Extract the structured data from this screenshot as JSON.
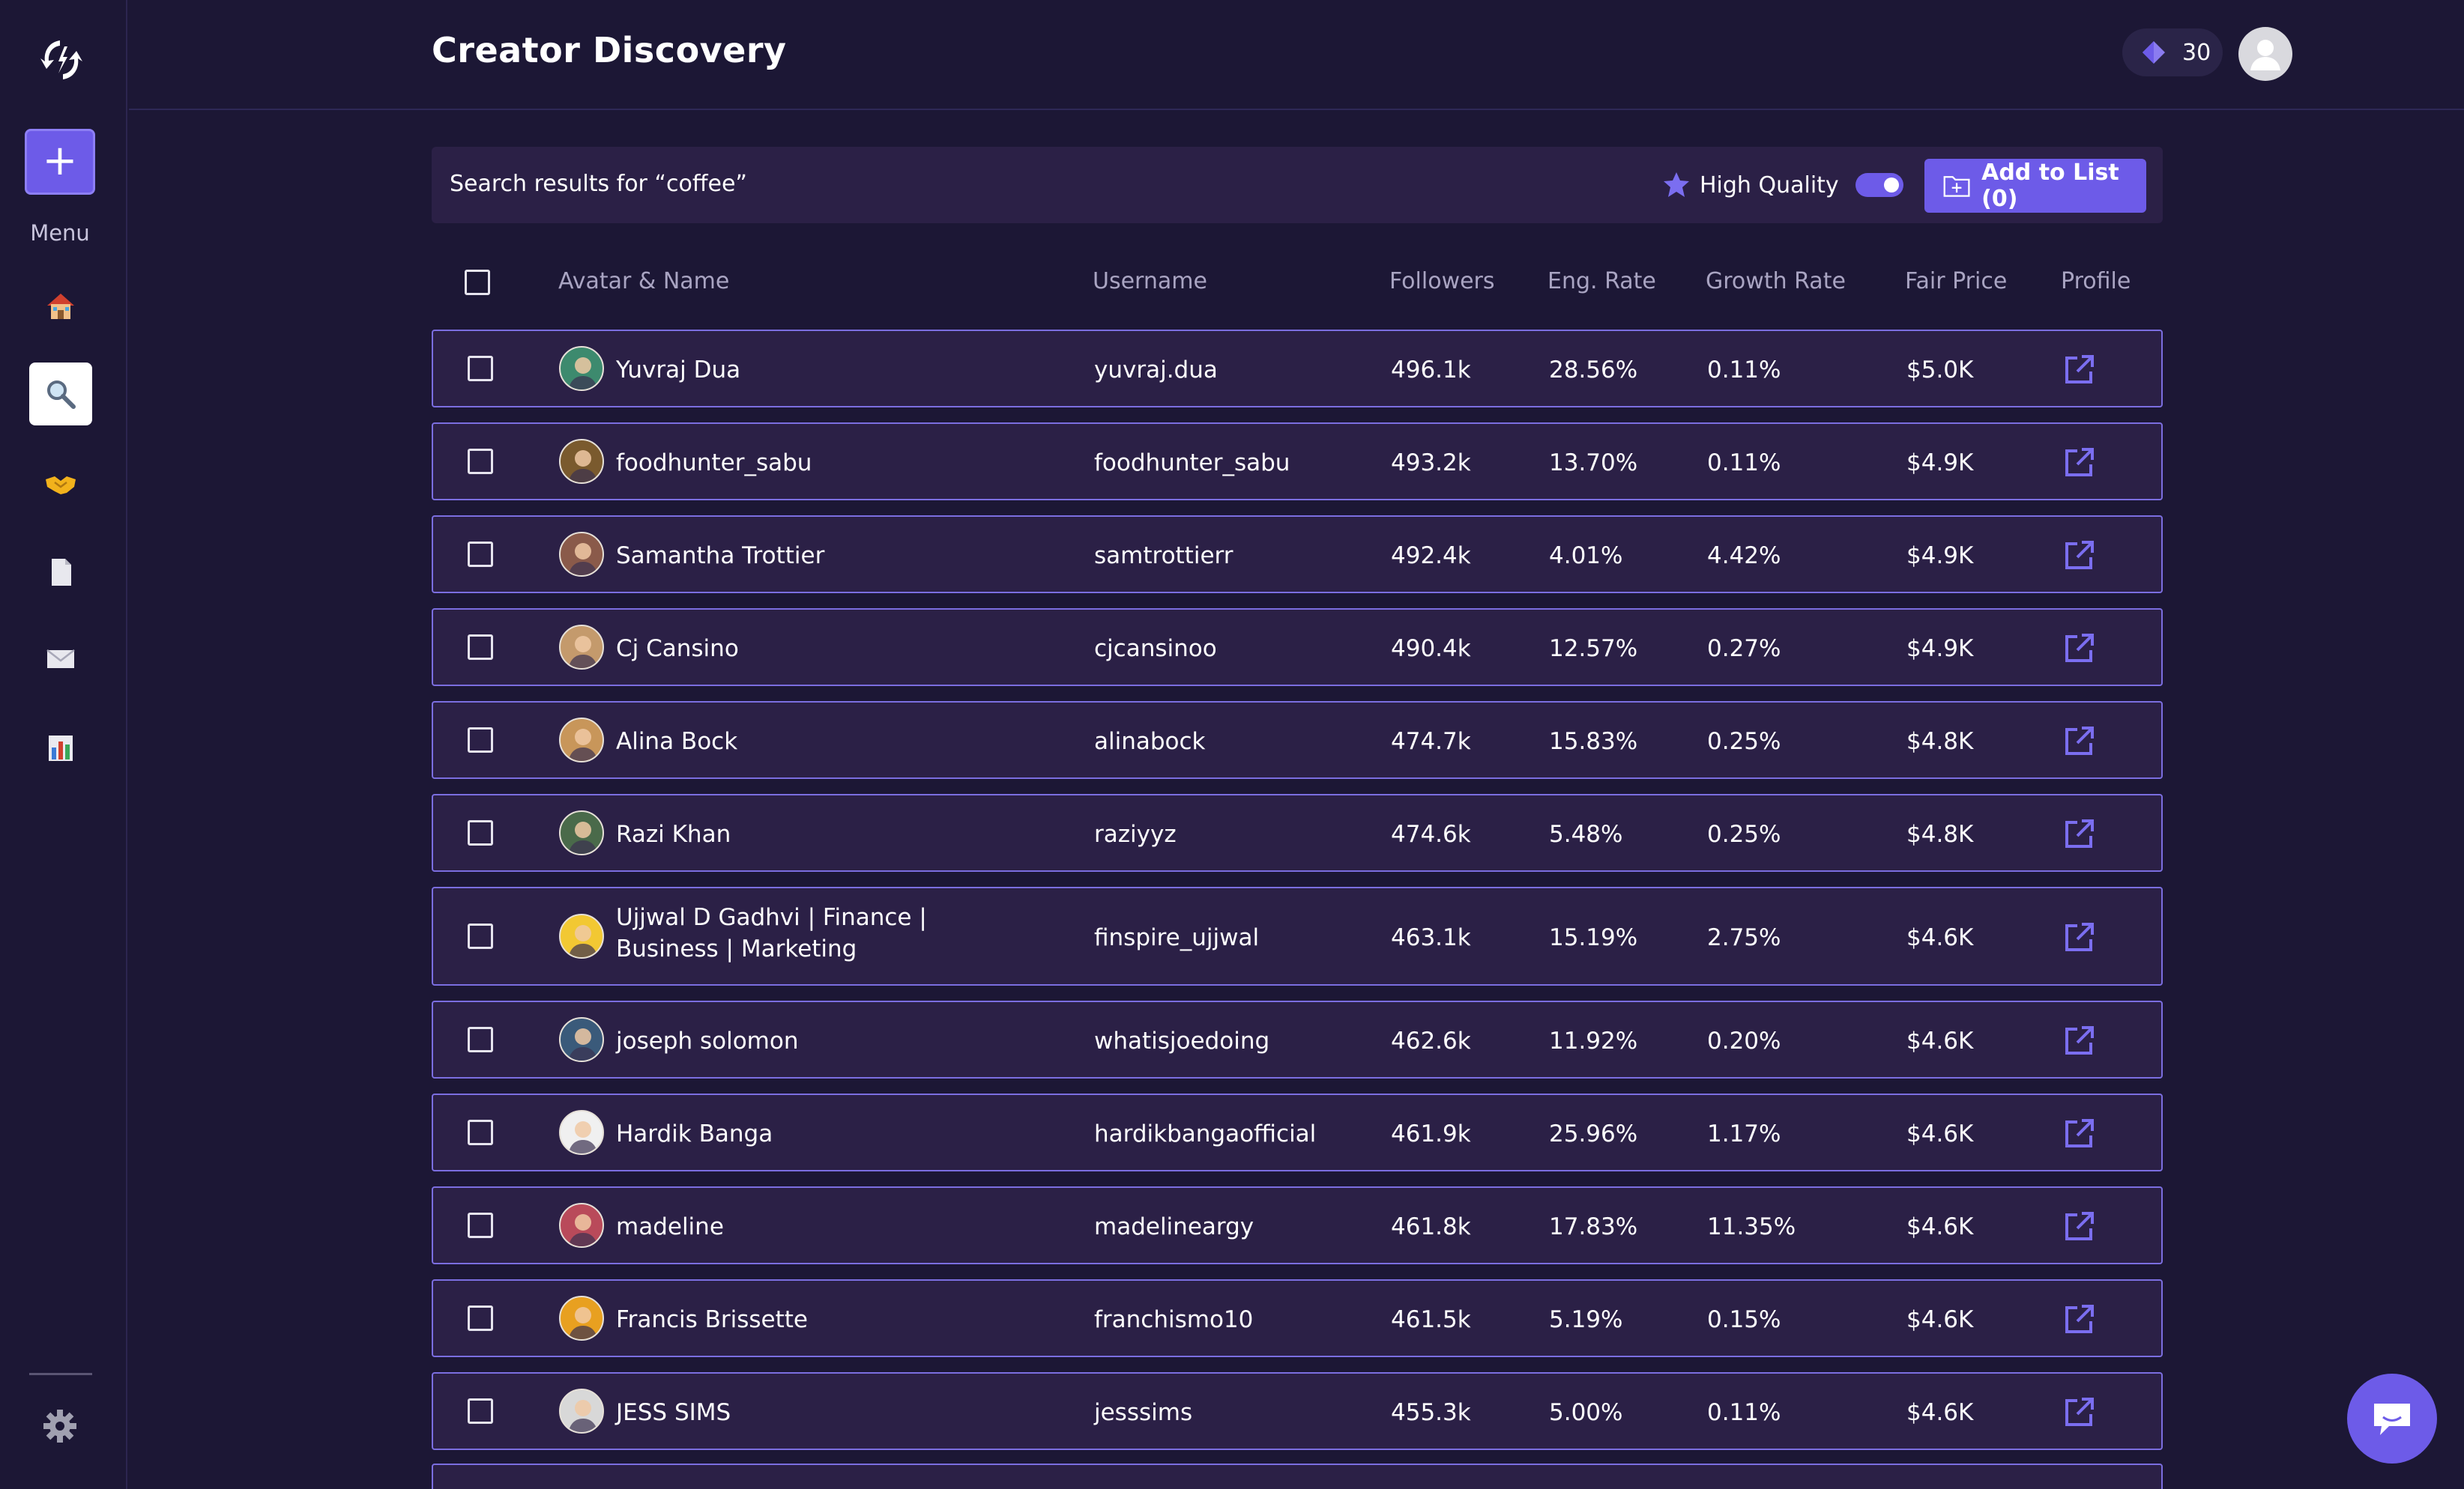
{
  "sidebar": {
    "new_label": "+",
    "menu_label": "Menu",
    "items": [
      {
        "icon": "home-icon",
        "active": false
      },
      {
        "icon": "search-icon",
        "active": true
      },
      {
        "icon": "handshake-icon",
        "active": false
      },
      {
        "icon": "document-icon",
        "active": false
      },
      {
        "icon": "mail-icon",
        "active": false
      },
      {
        "icon": "bar-chart-icon",
        "active": false
      }
    ],
    "settings_icon": "gear-icon"
  },
  "header": {
    "title": "Creator Discovery",
    "credits": "30"
  },
  "search": {
    "label": "Search results for “coffee”",
    "high_quality_label": "High Quality",
    "high_quality_on": true,
    "add_to_list_label": "Add to List (0)"
  },
  "table": {
    "columns": [
      "Avatar & Name",
      "Username",
      "Followers",
      "Eng. Rate",
      "Growth Rate",
      "Fair Price",
      "Profile"
    ],
    "rows": [
      {
        "name": "Yuvraj Dua",
        "username": "yuvraj.dua",
        "followers": "496.1k",
        "eng_rate": "28.56%",
        "growth_rate": "0.11%",
        "fair_price": "$5.0K",
        "avatar_color": "#3d8a6e"
      },
      {
        "name": "foodhunter_sabu",
        "username": "foodhunter_sabu",
        "followers": "493.2k",
        "eng_rate": "13.70%",
        "growth_rate": "0.11%",
        "fair_price": "$4.9K",
        "avatar_color": "#7a5a2e"
      },
      {
        "name": "Samantha Trottier",
        "username": "samtrottierr",
        "followers": "492.4k",
        "eng_rate": "4.01%",
        "growth_rate": "4.42%",
        "fair_price": "$4.9K",
        "avatar_color": "#8a5a4a"
      },
      {
        "name": "Cj Cansino",
        "username": "cjcansinoo",
        "followers": "490.4k",
        "eng_rate": "12.57%",
        "growth_rate": "0.27%",
        "fair_price": "$4.9K",
        "avatar_color": "#c49a6c"
      },
      {
        "name": "Alina Bock",
        "username": "alinabock",
        "followers": "474.7k",
        "eng_rate": "15.83%",
        "growth_rate": "0.25%",
        "fair_price": "$4.8K",
        "avatar_color": "#c8965a"
      },
      {
        "name": "Razi Khan",
        "username": "raziyyz",
        "followers": "474.6k",
        "eng_rate": "5.48%",
        "growth_rate": "0.25%",
        "fair_price": "$4.8K",
        "avatar_color": "#4a6a4a"
      },
      {
        "name": "Ujjwal D Gadhvi | Finance | Business | Marketing",
        "username": "finspire_ujjwal",
        "followers": "463.1k",
        "eng_rate": "15.19%",
        "growth_rate": "2.75%",
        "fair_price": "$4.6K",
        "avatar_color": "#f2c833"
      },
      {
        "name": "joseph solomon",
        "username": "whatisjoedoing",
        "followers": "462.6k",
        "eng_rate": "11.92%",
        "growth_rate": "0.20%",
        "fair_price": "$4.6K",
        "avatar_color": "#3a5a7a"
      },
      {
        "name": "Hardik Banga",
        "username": "hardikbangaofficial",
        "followers": "461.9k",
        "eng_rate": "25.96%",
        "growth_rate": "1.17%",
        "fair_price": "$4.6K",
        "avatar_color": "#f0f0f0"
      },
      {
        "name": "madeline",
        "username": "madelineargy",
        "followers": "461.8k",
        "eng_rate": "17.83%",
        "growth_rate": "11.35%",
        "fair_price": "$4.6K",
        "avatar_color": "#b94a5a"
      },
      {
        "name": "Francis Brissette",
        "username": "franchismo10",
        "followers": "461.5k",
        "eng_rate": "5.19%",
        "growth_rate": "0.15%",
        "fair_price": "$4.6K",
        "avatar_color": "#e8a020"
      },
      {
        "name": "JESS SIMS",
        "username": "jesssims",
        "followers": "455.3k",
        "eng_rate": "5.00%",
        "growth_rate": "0.11%",
        "fair_price": "$4.6K",
        "avatar_color": "#d8d8d8"
      }
    ]
  },
  "colors": {
    "background": "#1c1735",
    "row_background": "#2b2046",
    "row_border": "#7b6ee0",
    "accent": "#6d5be8"
  },
  "chat_icon": "chat-bubble-icon"
}
